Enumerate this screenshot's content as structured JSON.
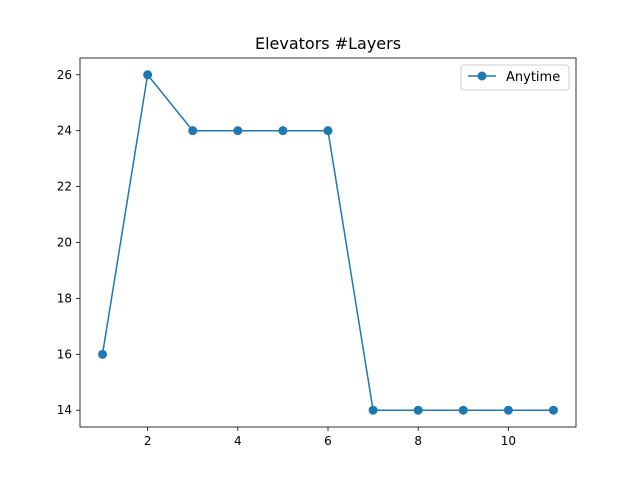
{
  "chart_data": {
    "type": "line",
    "title": "Elevators #Layers",
    "xlabel": "",
    "ylabel": "",
    "x": [
      1,
      2,
      3,
      4,
      5,
      6,
      7,
      8,
      9,
      10,
      11
    ],
    "series": [
      {
        "name": "Anytime",
        "values": [
          16,
          26,
          24,
          24,
          24,
          24,
          14,
          14,
          14,
          14,
          14
        ],
        "color": "#1f77b4",
        "marker": "circle"
      }
    ],
    "xlim": [
      0.5,
      11.5
    ],
    "ylim": [
      13.4,
      26.6
    ],
    "xticks": [
      2,
      4,
      6,
      8,
      10
    ],
    "yticks": [
      14,
      16,
      18,
      20,
      22,
      24,
      26
    ],
    "grid": false,
    "legend_position": "top-right"
  }
}
